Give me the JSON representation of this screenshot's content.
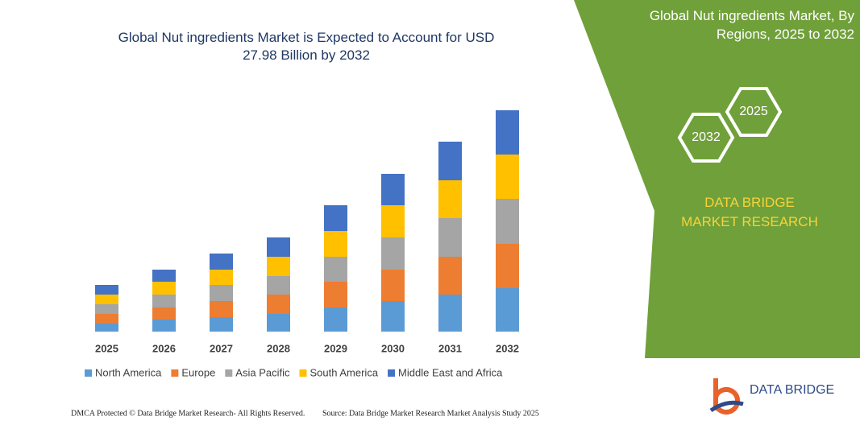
{
  "chart_data": {
    "type": "stacked_bar",
    "title": "Global Nut ingredients Market is Expected to Account for USD 27.98 Billion by 2032",
    "categories": [
      "2025",
      "2026",
      "2027",
      "2028",
      "2029",
      "2030",
      "2031",
      "2032"
    ],
    "series": [
      {
        "name": "North America",
        "color": "#5b9bd5",
        "values": [
          10,
          15,
          18,
          22,
          30,
          38,
          46,
          54
        ]
      },
      {
        "name": "Europe",
        "color": "#ed7d31",
        "values": [
          12,
          15,
          20,
          24,
          32,
          39,
          47,
          55
        ]
      },
      {
        "name": "Asia Pacific",
        "color": "#a5a5a5",
        "values": [
          12,
          16,
          20,
          23,
          31,
          40,
          48,
          56
        ]
      },
      {
        "name": "South America",
        "color": "#ffc000",
        "values": [
          12,
          16,
          19,
          24,
          32,
          40,
          47,
          55
        ]
      },
      {
        "name": "Middle East and Africa",
        "color": "#4472c4",
        "values": [
          12,
          15,
          20,
          24,
          32,
          39,
          48,
          55
        ]
      }
    ]
  },
  "panel": {
    "title": "Global Nut ingredients Market, By Regions, 2025 to 2032",
    "hex_a": "2025",
    "hex_b": "2032",
    "brand": "DATA BRIDGE MARKET RESEARCH"
  },
  "logo": "DATA BRIDGE",
  "footer": {
    "left": "DMCA Protected © Data Bridge Market Research-  All Rights Reserved.",
    "right": "Source: Data Bridge Market Research  Market Analysis Study 2025"
  }
}
